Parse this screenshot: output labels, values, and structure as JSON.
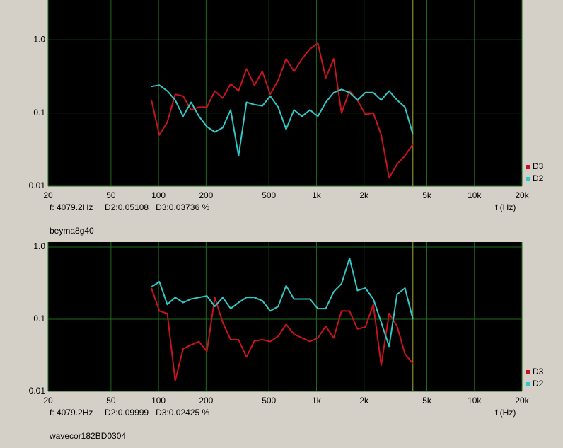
{
  "chart_data": [
    {
      "type": "line",
      "log_x": true,
      "log_y": true,
      "grid": true,
      "legend": "lower right",
      "xlim": [
        20,
        20000
      ],
      "ylim": [
        0.01,
        3.5
      ],
      "xticks": [
        20,
        50,
        100,
        200,
        500,
        {
          "value": 1000,
          "label": "1k"
        },
        {
          "value": 2000,
          "label": "2k"
        },
        {
          "value": 5000,
          "label": "5k"
        },
        {
          "value": 10000,
          "label": "10k"
        },
        {
          "value": 20000,
          "label": "20k"
        }
      ],
      "yticks": [
        0.01,
        0.1,
        {
          "value": 1,
          "label": "1.0"
        }
      ],
      "xlabel": "f (Hz)",
      "cursor_x": 4079.2,
      "cursor_color": "#a8a840",
      "readout": "f: 4079.2Hz     D2:0.05108   D3:0.03736 %",
      "caption": "beyma8g40",
      "x": [
        90.1,
        101.2,
        113.6,
        127.5,
        143.1,
        160.7,
        180.3,
        202.4,
        227.2,
        255.0,
        286.3,
        321.3,
        360.6,
        404.8,
        454.4,
        510.0,
        572.5,
        642.6,
        721.3,
        809.6,
        908.8,
        1020,
        1145,
        1285,
        1442,
        1619,
        1817,
        2040,
        2290,
        2570,
        2884,
        3238,
        3634,
        4079.2
      ],
      "series": [
        {
          "name": "D3",
          "color": "#c8141e",
          "values": [
            0.15,
            0.05,
            0.075,
            0.18,
            0.17,
            0.11,
            0.12,
            0.12,
            0.2,
            0.16,
            0.25,
            0.2,
            0.4,
            0.24,
            0.37,
            0.18,
            0.28,
            0.55,
            0.37,
            0.55,
            0.75,
            0.9,
            0.3,
            0.55,
            0.1,
            0.2,
            0.15,
            0.095,
            0.1,
            0.05,
            0.013,
            0.02,
            0.026,
            0.03736
          ]
        },
        {
          "name": "D2",
          "color": "#30c8c8",
          "values": [
            0.23,
            0.24,
            0.2,
            0.15,
            0.09,
            0.14,
            0.09,
            0.065,
            0.055,
            0.063,
            0.11,
            0.026,
            0.14,
            0.13,
            0.125,
            0.17,
            0.12,
            0.06,
            0.11,
            0.09,
            0.11,
            0.09,
            0.14,
            0.19,
            0.21,
            0.19,
            0.15,
            0.19,
            0.19,
            0.15,
            0.2,
            0.15,
            0.12,
            0.05108
          ]
        }
      ]
    },
    {
      "type": "line",
      "log_x": true,
      "log_y": true,
      "grid": true,
      "legend": "lower right",
      "xlim": [
        20,
        20000
      ],
      "ylim": [
        0.01,
        1.17
      ],
      "xticks": [
        20,
        50,
        100,
        200,
        500,
        {
          "value": 1000,
          "label": "1k"
        },
        {
          "value": 2000,
          "label": "2k"
        },
        {
          "value": 5000,
          "label": "5k"
        },
        {
          "value": 10000,
          "label": "10k"
        },
        {
          "value": 20000,
          "label": "20k"
        }
      ],
      "yticks": [
        0.01,
        0.1,
        {
          "value": 1,
          "label": "1.0"
        }
      ],
      "xlabel": "f (Hz)",
      "cursor_x": 4079.2,
      "cursor_color": "#a8a840",
      "readout": "f: 4079.2Hz     D2:0.09999   D3:0.02425 %",
      "caption": "wavecor182BD0304",
      "x": [
        90.1,
        101.2,
        113.6,
        127.5,
        143.1,
        160.7,
        180.3,
        202.4,
        227.2,
        255.0,
        286.3,
        321.3,
        360.6,
        404.8,
        454.4,
        510.0,
        572.5,
        642.6,
        721.3,
        809.6,
        908.8,
        1020,
        1145,
        1285,
        1442,
        1619,
        1817,
        2040,
        2290,
        2570,
        2884,
        3238,
        3634,
        4079.2
      ],
      "series": [
        {
          "name": "D3",
          "color": "#c8141e",
          "values": [
            0.27,
            0.13,
            0.12,
            0.014,
            0.039,
            0.044,
            0.049,
            0.036,
            0.2,
            0.09,
            0.052,
            0.052,
            0.03,
            0.05,
            0.052,
            0.049,
            0.058,
            0.085,
            0.062,
            0.055,
            0.049,
            0.055,
            0.08,
            0.055,
            0.13,
            0.13,
            0.073,
            0.078,
            0.16,
            0.023,
            0.12,
            0.08,
            0.033,
            0.02425
          ]
        },
        {
          "name": "D2",
          "color": "#30c8c8",
          "values": [
            0.28,
            0.33,
            0.16,
            0.2,
            0.17,
            0.19,
            0.2,
            0.21,
            0.15,
            0.2,
            0.14,
            0.17,
            0.2,
            0.2,
            0.18,
            0.13,
            0.15,
            0.29,
            0.19,
            0.19,
            0.19,
            0.14,
            0.14,
            0.24,
            0.31,
            0.7,
            0.25,
            0.27,
            0.19,
            0.09,
            0.042,
            0.22,
            0.27,
            0.09999
          ]
        }
      ]
    }
  ]
}
